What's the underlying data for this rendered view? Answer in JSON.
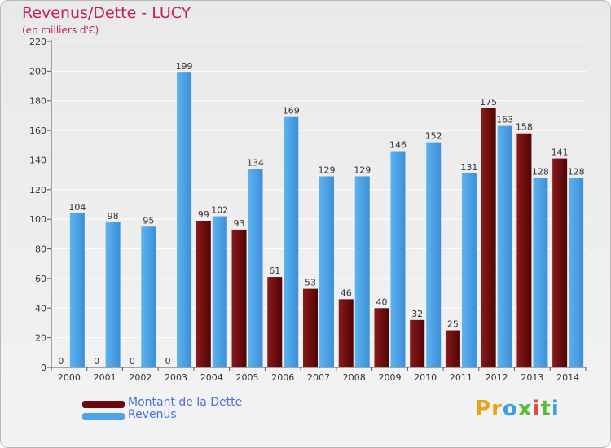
{
  "title": "Revenus/Dette - LUCY",
  "subtitle": "(en milliers d'€)",
  "logo_text": "Proxiti",
  "colors": {
    "dette": "#6b0a0a",
    "revenus": "#4da3e6",
    "title": "#c02062",
    "legend_text": "#4a6fe0"
  },
  "chart_data": {
    "type": "bar",
    "categories": [
      "2000",
      "2001",
      "2002",
      "2003",
      "2004",
      "2005",
      "2006",
      "2007",
      "2008",
      "2009",
      "2010",
      "2011",
      "2012",
      "2013",
      "2014"
    ],
    "series": [
      {
        "name": "Montant de la Dette",
        "values": [
          0,
          0,
          0,
          0,
          99,
          93,
          61,
          53,
          46,
          40,
          32,
          25,
          175,
          158,
          141
        ]
      },
      {
        "name": "Revenus",
        "values": [
          104,
          98,
          95,
          199,
          102,
          134,
          169,
          129,
          129,
          146,
          152,
          131,
          163,
          128,
          128
        ]
      }
    ],
    "ylim": [
      0,
      220
    ],
    "yticks": [
      0,
      20,
      40,
      60,
      80,
      100,
      120,
      140,
      160,
      180,
      200,
      220
    ],
    "grid": true,
    "legend": "bottom-left"
  }
}
